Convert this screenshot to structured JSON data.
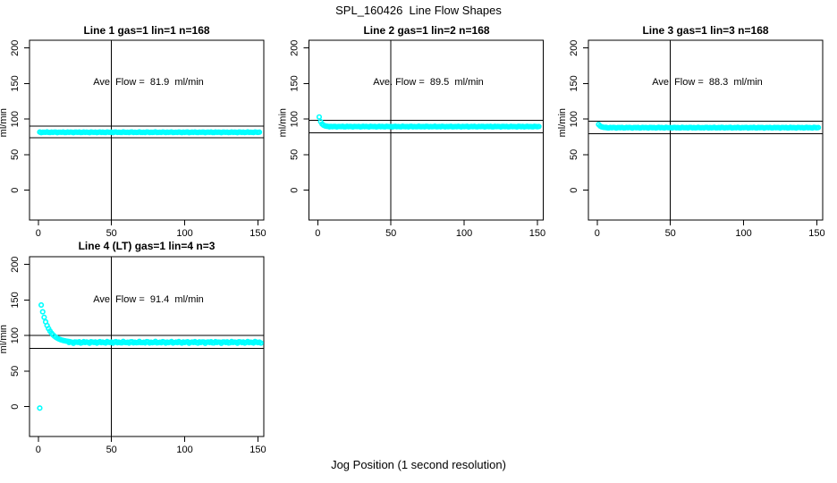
{
  "figure": {
    "main_title": "SPL_160426  Line Flow Shapes",
    "x_axis_label": "Jog Position (1 second resolution)",
    "point_color": "#00ffff",
    "axis_color": "#000000",
    "background": "#ffffff"
  },
  "axes": {
    "x_ticks": [
      0,
      50,
      100,
      150
    ],
    "y_ticks": [
      0,
      50,
      100,
      150,
      200
    ],
    "xlim": [
      -6,
      154
    ],
    "ylim": [
      -42,
      211
    ],
    "y_unit_label": "ml/min",
    "vline_x": 50
  },
  "chart_data": [
    {
      "type": "scatter",
      "title": "Line 1 gas=1 lin=1 n=168",
      "annotation": "Ave. Flow =  81.9  ml/min",
      "ave_flow_ml_min": 81.9,
      "n": 168,
      "ref_lines": [
        73.71,
        90.09
      ],
      "series": [
        {
          "kind": "flat",
          "x_start": 1,
          "x_end": 151,
          "value": 81.5,
          "wiggle": 0.4
        }
      ],
      "outliers": []
    },
    {
      "type": "scatter",
      "title": "Line 2 gas=1 lin=2 n=168",
      "annotation": "Ave. Flow =  89.5  ml/min",
      "ave_flow_ml_min": 89.5,
      "n": 168,
      "ref_lines": [
        80.55,
        98.45
      ],
      "series": [
        {
          "kind": "decay",
          "x_start": 1,
          "x_end": 8,
          "from": 103,
          "to": 89.5,
          "tau": 1.5
        },
        {
          "kind": "flat",
          "x_start": 8,
          "x_end": 151,
          "value": 89.5,
          "wiggle": 0.4
        }
      ],
      "outliers": []
    },
    {
      "type": "scatter",
      "title": "Line 3 gas=1 lin=3 n=168",
      "annotation": "Ave. Flow =  88.3  ml/min",
      "ave_flow_ml_min": 88.3,
      "n": 168,
      "ref_lines": [
        79.47,
        97.13
      ],
      "series": [
        {
          "kind": "decay",
          "x_start": 1,
          "x_end": 6,
          "from": 92.5,
          "to": 88,
          "tau": 1.5
        },
        {
          "kind": "flat",
          "x_start": 6,
          "x_end": 151,
          "value": 88,
          "wiggle": 0.4
        }
      ],
      "outliers": []
    },
    {
      "type": "scatter",
      "title": "Line 4 (LT) gas=1 lin=4 n=3",
      "annotation": "Ave. Flow =  91.4  ml/min",
      "ave_flow_ml_min": 91.4,
      "n": 3,
      "ref_lines": [
        82.26,
        100.54
      ],
      "series": [
        {
          "kind": "decay",
          "x_start": 2,
          "x_end": 21,
          "from": 143,
          "to": 90.5,
          "tau": 5
        },
        {
          "kind": "flat",
          "x_start": 21,
          "x_end": 152,
          "value": 90.5,
          "wiggle": 1.0
        }
      ],
      "outliers": [
        [
          1,
          -2
        ]
      ]
    }
  ]
}
